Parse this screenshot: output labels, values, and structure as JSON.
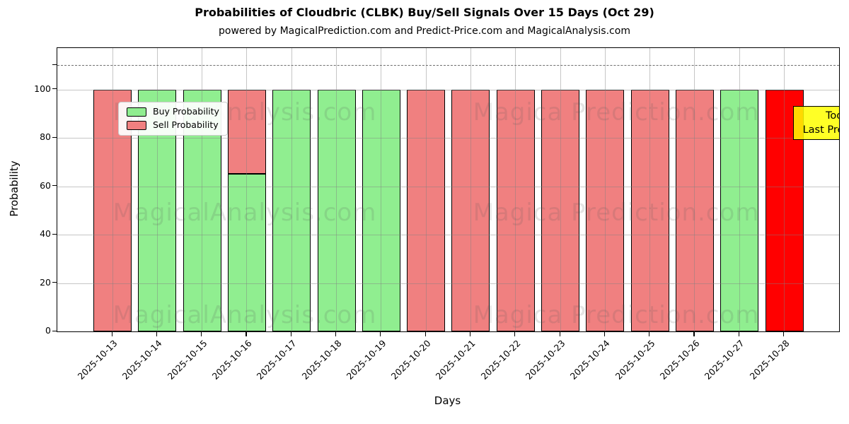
{
  "title": "Probabilities of Cloudbric (CLBK) Buy/Sell Signals Over 15 Days (Oct 29)",
  "subtitle": "powered by MagicalPrediction.com and Predict-Price.com and MagicalAnalysis.com",
  "legend": {
    "items": [
      {
        "label": "Buy Probability",
        "color": "#90ee90"
      },
      {
        "label": "Sell Probability",
        "color": "#f08080"
      }
    ]
  },
  "annotation": {
    "line1": "Today",
    "line2": "Last Prediction",
    "bg_color": "#ffff00"
  },
  "watermarks": [
    "MagicalAnalysis.com",
    "Magica Prediction.com"
  ],
  "colors": {
    "buy": "#90ee90",
    "sell": "#f08080",
    "today_bar": "#ff0000",
    "grid": "#808080",
    "axis": "#000000"
  },
  "chart_data": {
    "type": "bar",
    "stacked": true,
    "title": "Probabilities of Cloudbric (CLBK) Buy/Sell Signals Over 15 Days (Oct 29)",
    "xlabel": "Days",
    "ylabel": "Probability",
    "ylim": [
      0,
      117
    ],
    "yticks": [
      0,
      20,
      40,
      60,
      80,
      100
    ],
    "dashed_line_y": 110,
    "grid": true,
    "legend_position": "upper left",
    "categories": [
      "2025-10-13",
      "2025-10-14",
      "2025-10-15",
      "2025-10-16",
      "2025-10-17",
      "2025-10-18",
      "2025-10-19",
      "2025-10-20",
      "2025-10-21",
      "2025-10-22",
      "2025-10-23",
      "2025-10-24",
      "2025-10-25",
      "2025-10-26",
      "2025-10-27",
      "2025-10-28"
    ],
    "series": [
      {
        "name": "Buy Probability",
        "color": "#90ee90",
        "values": [
          0,
          100,
          100,
          65,
          100,
          100,
          100,
          0,
          0,
          0,
          0,
          0,
          0,
          0,
          100,
          0
        ]
      },
      {
        "name": "Sell Probability",
        "color": "#f08080",
        "values": [
          100,
          0,
          0,
          35,
          0,
          0,
          0,
          100,
          100,
          100,
          100,
          100,
          100,
          100,
          0,
          0
        ]
      },
      {
        "name": "Today Last Prediction",
        "color": "#ff0000",
        "in_legend": false,
        "values": [
          0,
          0,
          0,
          0,
          0,
          0,
          0,
          0,
          0,
          0,
          0,
          0,
          0,
          0,
          0,
          100
        ]
      }
    ]
  }
}
